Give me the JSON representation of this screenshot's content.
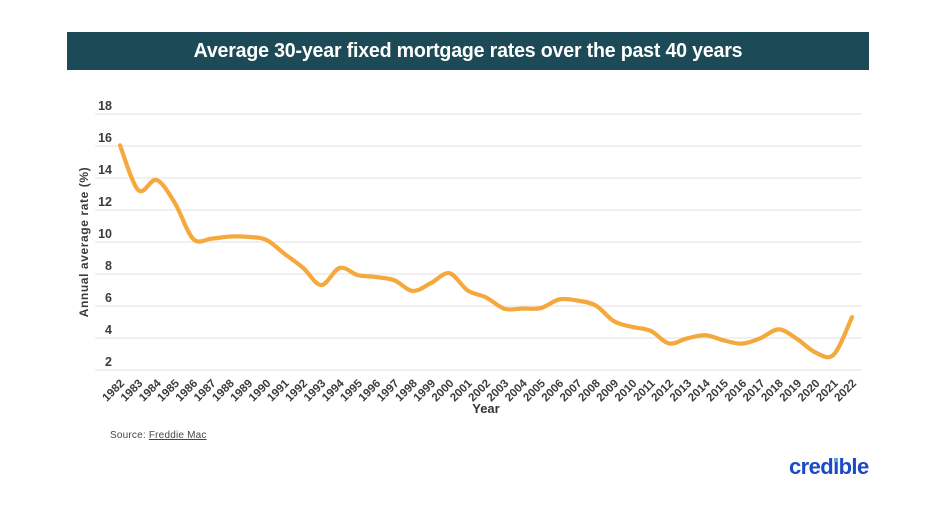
{
  "page": {
    "background": "#ffffff"
  },
  "banner": {
    "title": "Average 30-year fixed mortgage rates over the past 40 years",
    "bg_color": "#1d4a57",
    "text_color": "#ffffff"
  },
  "chart_data": {
    "type": "line",
    "title": "Average 30-year fixed mortgage rates over the past 40 years",
    "xlabel": "Year",
    "ylabel": "Annual average rate (%)",
    "x": [
      1982,
      1983,
      1984,
      1985,
      1986,
      1987,
      1988,
      1989,
      1990,
      1991,
      1992,
      1993,
      1994,
      1995,
      1996,
      1997,
      1998,
      1999,
      2000,
      2001,
      2002,
      2003,
      2004,
      2005,
      2006,
      2007,
      2008,
      2009,
      2010,
      2011,
      2012,
      2013,
      2014,
      2015,
      2016,
      2017,
      2018,
      2019,
      2020,
      2021,
      2022
    ],
    "series": [
      {
        "name": "30-year fixed mortgage annual average rate",
        "color": "#F5A83C",
        "values": [
          16.04,
          13.24,
          13.88,
          12.43,
          10.19,
          10.21,
          10.34,
          10.32,
          10.13,
          9.25,
          8.39,
          7.31,
          8.38,
          7.93,
          7.81,
          7.6,
          6.94,
          7.44,
          8.05,
          6.97,
          6.54,
          5.83,
          5.84,
          5.87,
          6.41,
          6.34,
          6.03,
          5.04,
          4.69,
          4.45,
          3.66,
          3.98,
          4.17,
          3.85,
          3.65,
          3.99,
          4.54,
          3.94,
          3.1,
          2.96,
          5.3
        ]
      }
    ],
    "ylim": [
      2,
      18
    ],
    "yticks": [
      2,
      4,
      6,
      8,
      10,
      12,
      14,
      16,
      18
    ],
    "grid": "horizontal",
    "grid_color": "#e6e6e6",
    "tick_label_color": "#3c3c3c",
    "legend": "none"
  },
  "source": {
    "label": "Source: ",
    "link_text": "Freddie Mac"
  },
  "logo": {
    "text": "credible",
    "color": "#1c49c6",
    "dot_color": "#58a8da",
    "parts": {
      "pre": "cred",
      "i_base": "ı",
      "post": "ble"
    }
  }
}
